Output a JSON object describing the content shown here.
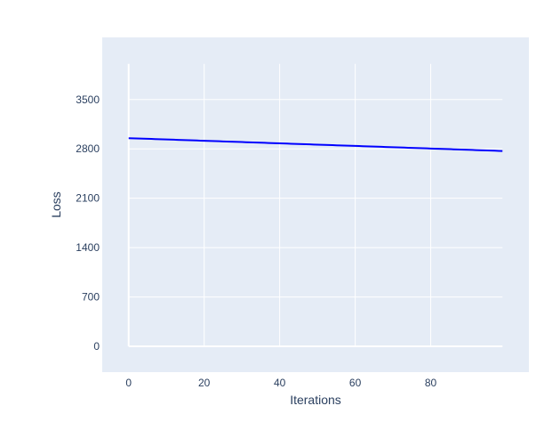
{
  "chart_data": {
    "type": "line",
    "title": "",
    "xlabel": "Iterations",
    "ylabel": "Loss",
    "xlim": [
      -7,
      106
    ],
    "ylim": [
      -366,
      4381
    ],
    "xticks": [
      0,
      20,
      40,
      60,
      80
    ],
    "yticks": [
      0,
      700,
      1400,
      2100,
      2800,
      3500
    ],
    "grid": true,
    "legend": "none",
    "colors": {
      "line": "#0000ff",
      "plot_bg": "#e5ecf6",
      "grid": "#ffffff",
      "text": "#2a3f5f"
    },
    "series": [
      {
        "x": [
          0,
          1,
          2,
          3,
          4,
          5,
          6,
          7,
          8,
          9,
          10,
          11,
          12,
          13,
          14,
          15,
          16,
          17,
          18,
          19,
          20,
          21,
          22,
          23,
          24,
          25,
          26,
          27,
          28,
          29,
          30,
          31,
          32,
          33,
          34,
          35,
          36,
          37,
          38,
          39,
          40,
          41,
          42,
          43,
          44,
          45,
          46,
          47,
          48,
          49,
          50,
          51,
          52,
          53,
          54,
          55,
          56,
          57,
          58,
          59,
          60,
          61,
          62,
          63,
          64,
          65,
          66,
          67,
          68,
          69,
          70,
          71,
          72,
          73,
          74,
          75,
          76,
          77,
          78,
          79,
          80,
          81,
          82,
          83,
          84,
          85,
          86,
          87,
          88,
          89,
          90,
          91,
          92,
          93,
          94,
          95,
          96,
          97,
          98,
          99
        ],
        "y": [
          2952,
          2950,
          2948,
          2946,
          2945,
          2943,
          2941,
          2939,
          2937,
          2935,
          2934,
          2932,
          2930,
          2928,
          2926,
          2924,
          2923,
          2921,
          2919,
          2917,
          2915,
          2913,
          2912,
          2910,
          2908,
          2906,
          2904,
          2902,
          2901,
          2899,
          2897,
          2895,
          2893,
          2891,
          2890,
          2888,
          2886,
          2884,
          2882,
          2880,
          2878,
          2877,
          2875,
          2873,
          2871,
          2869,
          2867,
          2866,
          2864,
          2862,
          2860,
          2858,
          2856,
          2855,
          2853,
          2851,
          2849,
          2847,
          2845,
          2844,
          2842,
          2840,
          2838,
          2836,
          2834,
          2833,
          2831,
          2829,
          2827,
          2825,
          2823,
          2822,
          2820,
          2818,
          2816,
          2814,
          2812,
          2811,
          2809,
          2807,
          2805,
          2803,
          2801,
          2799,
          2798,
          2796,
          2794,
          2792,
          2790,
          2788,
          2787,
          2785,
          2783,
          2781,
          2779,
          2777,
          2776,
          2774,
          2772,
          2770
        ]
      }
    ]
  }
}
